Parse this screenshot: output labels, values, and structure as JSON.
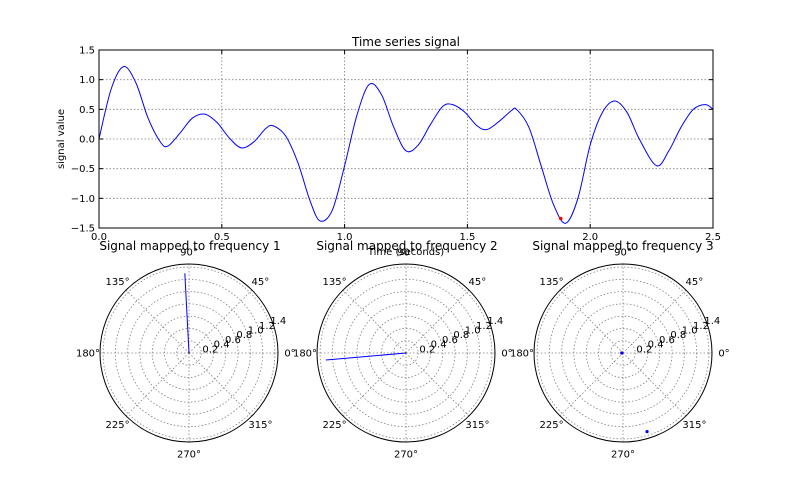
{
  "chart_data": [
    {
      "type": "line",
      "title": "Time series signal",
      "xlabel": "Time (seconds)",
      "ylabel": "signal value",
      "xlim": [
        0.0,
        2.5
      ],
      "ylim": [
        -1.5,
        1.5
      ],
      "xticks": [
        "0.0",
        "0.5",
        "1.0",
        "1.5",
        "2.0",
        "2.5"
      ],
      "yticks": [
        "1.5",
        "1.0",
        "0.5",
        "0.0",
        "−0.5",
        "−1.0",
        "−1.5"
      ],
      "grid": true,
      "line_color": "#0000ff",
      "series": [
        {
          "x": [
            0.0,
            0.05,
            0.1,
            0.15,
            0.2,
            0.25,
            0.28,
            0.33,
            0.38,
            0.43,
            0.48,
            0.53,
            0.58,
            0.63,
            0.68,
            0.71,
            0.76,
            0.81,
            0.86,
            0.9,
            0.95,
            1.0,
            1.05,
            1.1,
            1.15,
            1.2,
            1.25,
            1.3,
            1.35,
            1.4,
            1.44,
            1.49,
            1.54,
            1.58,
            1.63,
            1.68,
            1.7,
            1.75,
            1.8,
            1.85,
            1.9,
            1.95,
            2.0,
            2.05,
            2.1,
            2.15,
            2.2,
            2.27,
            2.32,
            2.37,
            2.42,
            2.47,
            2.5
          ],
          "values": [
            0.0,
            0.85,
            1.22,
            0.95,
            0.35,
            -0.05,
            -0.12,
            0.1,
            0.35,
            0.42,
            0.28,
            0.02,
            -0.15,
            -0.05,
            0.18,
            0.22,
            0.05,
            -0.4,
            -1.05,
            -1.38,
            -1.2,
            -0.45,
            0.4,
            0.92,
            0.75,
            0.2,
            -0.2,
            -0.1,
            0.25,
            0.55,
            0.58,
            0.45,
            0.22,
            0.16,
            0.3,
            0.48,
            0.5,
            0.2,
            -0.45,
            -1.1,
            -1.42,
            -1.0,
            -0.1,
            0.45,
            0.64,
            0.45,
            0.0,
            -0.45,
            -0.2,
            0.2,
            0.5,
            0.58,
            0.5
          ]
        }
      ],
      "marker": {
        "x": 1.88,
        "y": -1.34,
        "color": "#ff0000"
      }
    },
    {
      "type": "polar",
      "title": "Signal mapped to frequency 1",
      "angle_ticks": [
        "0°",
        "45°",
        "90°",
        "135°",
        "180°",
        "225°",
        "270°",
        "315°"
      ],
      "radial_ticks": [
        "0.2",
        "0.4",
        "0.6",
        "0.8",
        "1.0",
        "1.2",
        "1.4"
      ],
      "rmax": 1.45,
      "line": {
        "angle_deg": 93,
        "r": 1.3,
        "color": "#0000ff"
      }
    },
    {
      "type": "polar",
      "title": "Signal mapped to frequency 2",
      "angle_ticks": [
        "0°",
        "45°",
        "90°",
        "135°",
        "180°",
        "225°",
        "270°",
        "315°"
      ],
      "radial_ticks": [
        "0.2",
        "0.4",
        "0.6",
        "0.8",
        "1.0",
        "1.2",
        "1.4"
      ],
      "rmax": 1.45,
      "line": {
        "angle_deg": 185,
        "r": 1.31,
        "color": "#0000ff"
      }
    },
    {
      "type": "polar",
      "title": "Signal mapped to frequency 3",
      "angle_ticks": [
        "0°",
        "45°",
        "90°",
        "135°",
        "180°",
        "225°",
        "270°",
        "315°"
      ],
      "radial_ticks": [
        "0.2",
        "0.4",
        "0.6",
        "0.8",
        "1.0",
        "1.2",
        "1.4"
      ],
      "rmax": 1.45,
      "points": [
        {
          "angle_deg": 180,
          "r": 0.02,
          "color": "#0000ff"
        },
        {
          "angle_deg": 287,
          "r": 1.34,
          "color": "#0000ff"
        }
      ]
    }
  ]
}
